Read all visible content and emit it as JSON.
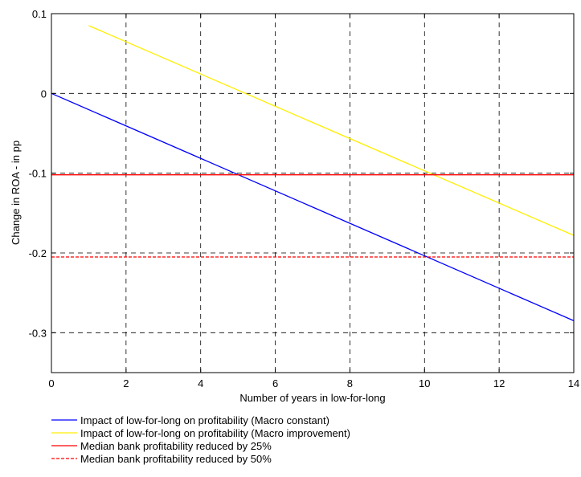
{
  "chart_data": {
    "type": "line",
    "title": "",
    "xlabel": "Number of years in low-for-long",
    "ylabel": "Change in ROA - in pp",
    "xlim": [
      0,
      14
    ],
    "ylim": [
      -0.35,
      0.1
    ],
    "x_ticks": [
      0,
      2,
      4,
      6,
      8,
      10,
      12,
      14
    ],
    "x_tick_labels": [
      "0",
      "2",
      "4",
      "6",
      "8",
      "10",
      "12",
      "14"
    ],
    "y_ticks": [
      -0.3,
      -0.2,
      -0.1,
      0,
      0.1
    ],
    "y_tick_labels": [
      "-0.3",
      "-0.2",
      "-0.1",
      "0",
      "0.1"
    ],
    "grid": true,
    "grid_style": "dashed",
    "legend_position": "below-left",
    "series": [
      {
        "name": "Impact of low-for-long on profitability (Macro constant)",
        "color": "#0000ff",
        "style": "solid",
        "x": [
          0,
          14
        ],
        "y": [
          0,
          -0.285
        ]
      },
      {
        "name": "Impact of low-for-long on profitability (Macro improvement)",
        "color": "#ffee00",
        "style": "solid",
        "x": [
          1,
          14
        ],
        "y": [
          0.085,
          -0.178
        ]
      },
      {
        "name": "Median bank profitability reduced by 25%",
        "color": "#ff0000",
        "style": "solid",
        "x": [
          0,
          14
        ],
        "y": [
          -0.102,
          -0.102
        ]
      },
      {
        "name": "Median bank profitability reduced by 50%",
        "color": "#ff0000",
        "style": "dashed",
        "x": [
          0,
          14
        ],
        "y": [
          -0.205,
          -0.205
        ]
      }
    ]
  }
}
